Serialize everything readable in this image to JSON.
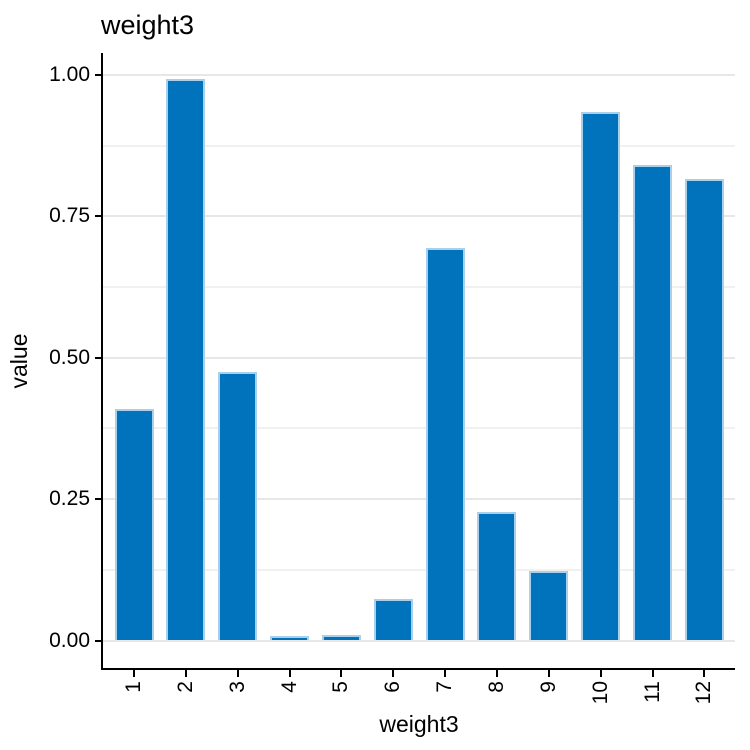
{
  "chart_data": {
    "type": "bar",
    "title": "weight3",
    "xlabel": "weight3",
    "ylabel": "value",
    "categories": [
      "1",
      "2",
      "3",
      "4",
      "5",
      "6",
      "7",
      "8",
      "9",
      "10",
      "11",
      "12"
    ],
    "values": [
      0.41,
      0.992,
      0.475,
      0.008,
      0.009,
      0.073,
      0.693,
      0.227,
      0.122,
      0.935,
      0.841,
      0.815
    ],
    "ylim": [
      0,
      1.0
    ],
    "y_major_ticks": [
      0,
      0.25,
      0.5,
      0.75,
      1.0
    ],
    "y_tick_labels": [
      "0.00",
      "0.25",
      "0.50",
      "0.75",
      "1.00"
    ],
    "y_minor_ticks": [
      0.125,
      0.375,
      0.625,
      0.875
    ],
    "grid": "horizontal, major and minor, light gray",
    "legend": "none",
    "x_tick_rotation_deg": 90,
    "colors": {
      "bar_fill": "#0173bd",
      "bar_stroke": "#a8d0ea",
      "grid_major": "#e7e7e7",
      "grid_minor": "#f1f1f1",
      "axis_line": "#000000",
      "text": "#000000",
      "background": "#ffffff"
    }
  }
}
